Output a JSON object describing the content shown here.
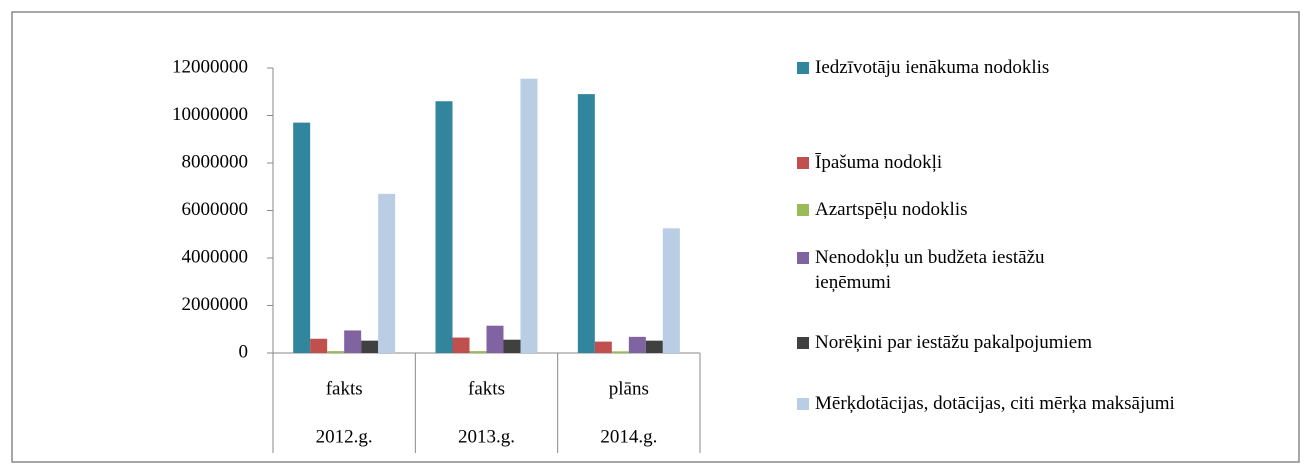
{
  "chart_data": {
    "type": "bar",
    "categories": [
      "fakts",
      "fakts",
      "plāns"
    ],
    "groups": [
      "2012.g.",
      "2013.g.",
      "2014.g."
    ],
    "series": [
      {
        "name": "Iedzīvotāju ienākuma nodoklis",
        "color": "#31859c",
        "values": [
          9700000,
          10600000,
          10900000
        ]
      },
      {
        "name": "Īpašuma nodokļi",
        "color": "#c0504d",
        "values": [
          600000,
          650000,
          480000
        ]
      },
      {
        "name": "Azartspēļu nodoklis",
        "color": "#9bbb59",
        "values": [
          80000,
          80000,
          70000
        ]
      },
      {
        "name": "Nenodokļu un budžeta iestāžu ieņēmumi",
        "color": "#8064a2",
        "values": [
          950000,
          1150000,
          680000
        ]
      },
      {
        "name": "Norēķini par iestāžu pakalpojumiem",
        "color": "#404040",
        "values": [
          520000,
          560000,
          520000
        ]
      },
      {
        "name": "Mērķdotācijas, dotācijas, citi mērķa maksājumi",
        "color": "#b9cde5",
        "values": [
          6700000,
          11550000,
          5250000
        ]
      }
    ],
    "ylim": [
      0,
      12000000
    ],
    "yticks": [
      0,
      2000000,
      4000000,
      6000000,
      8000000,
      10000000,
      12000000
    ],
    "legend": "right"
  }
}
